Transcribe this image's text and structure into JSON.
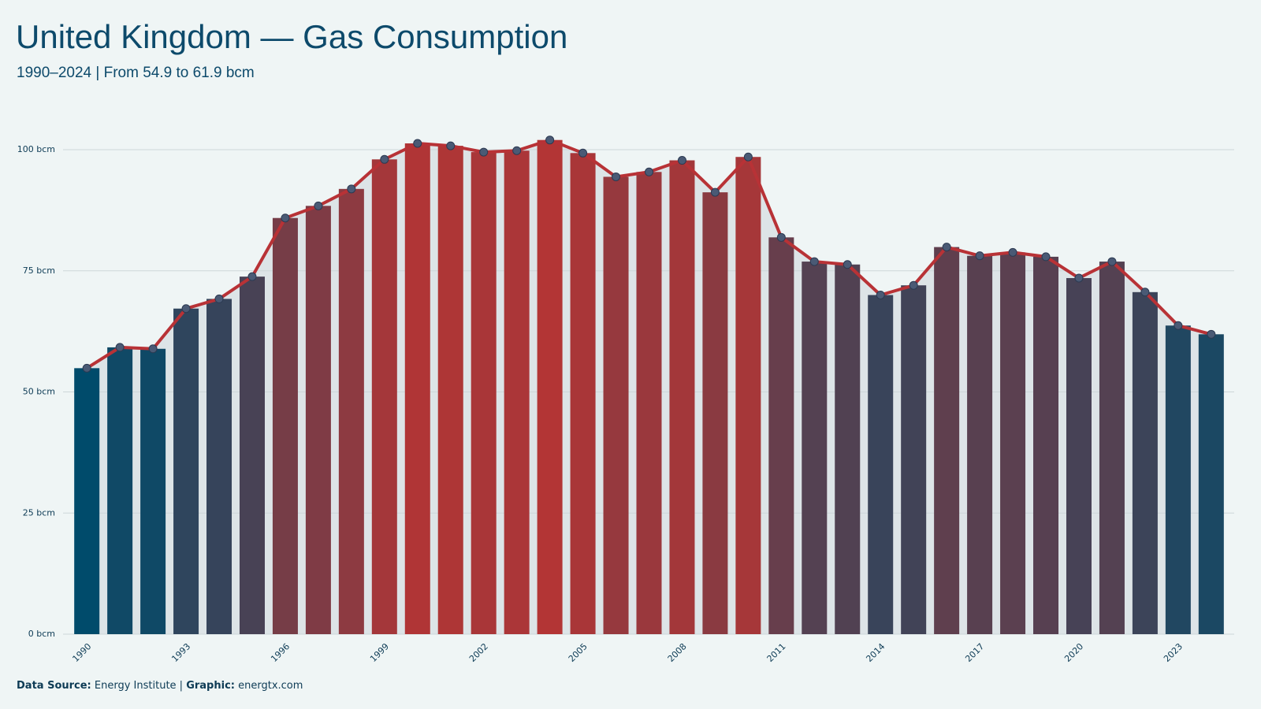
{
  "chart_data": {
    "type": "bar-line",
    "title": "United Kingdom — Gas Consumption",
    "subtitle": "1990–2024 | From 54.9 to 61.9 bcm",
    "categories": [
      "1990",
      null,
      null,
      "1993",
      null,
      null,
      "1996",
      null,
      null,
      "1999",
      null,
      null,
      "2002",
      null,
      null,
      "2005",
      null,
      null,
      "2008",
      null,
      null,
      "2011",
      null,
      null,
      "2014",
      null,
      null,
      "2017",
      null,
      null,
      "2020",
      null,
      null,
      "2023",
      null
    ],
    "values": [
      54.9,
      59.2,
      58.9,
      67.2,
      69.2,
      73.8,
      85.9,
      88.4,
      91.9,
      98.0,
      101.3,
      100.8,
      99.5,
      99.8,
      102.0,
      99.3,
      94.4,
      95.4,
      97.8,
      91.2,
      98.5,
      81.9,
      76.9,
      76.3,
      70.0,
      72.0,
      79.9,
      78.1,
      78.8,
      77.9,
      73.5,
      76.9,
      70.6,
      63.7,
      61.9
    ],
    "color_low": "#004b6b",
    "color_high": "#b33535",
    "line_color": "#b83236",
    "point_color": "#4a5a75",
    "area_color": "#dde4e7",
    "ylim": [
      0,
      100
    ],
    "yticks": [
      {
        "value": 0,
        "label": "0 bcm"
      },
      {
        "value": 25,
        "label": "25 bcm"
      },
      {
        "value": 50,
        "label": "50 bcm"
      },
      {
        "value": 75,
        "label": "75 bcm"
      },
      {
        "value": 100,
        "label": "100 bcm"
      }
    ],
    "grid": true,
    "footer": {
      "source_label": "Data Source:",
      "source": "Energy Institute |",
      "graphic_label": "Graphic:",
      "graphic": "energtx.com"
    }
  }
}
